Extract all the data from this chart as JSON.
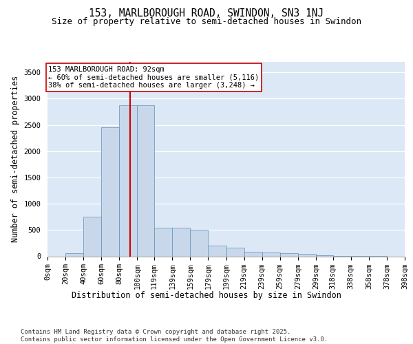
{
  "title_line1": "153, MARLBOROUGH ROAD, SWINDON, SN3 1NJ",
  "title_line2": "Size of property relative to semi-detached houses in Swindon",
  "xlabel": "Distribution of semi-detached houses by size in Swindon",
  "ylabel": "Number of semi-detached properties",
  "property_size": 92,
  "smaller_pct": "60%",
  "smaller_count": "5,116",
  "larger_pct": "38%",
  "larger_count": "3,248",
  "bin_edges": [
    0,
    20,
    40,
    60,
    80,
    100,
    119,
    139,
    159,
    179,
    199,
    219,
    239,
    259,
    279,
    299,
    318,
    338,
    358,
    378,
    398
  ],
  "bar_heights": [
    0,
    55,
    750,
    2450,
    2870,
    2870,
    550,
    540,
    500,
    200,
    160,
    80,
    75,
    55,
    45,
    15,
    5,
    2,
    1,
    0
  ],
  "bar_color": "#c8d8ea",
  "bar_edge_color": "#6090b8",
  "vline_color": "#cc0000",
  "vline_x": 92,
  "background_color": "#dce8f5",
  "annotation_box_color": "#ffffff",
  "annotation_box_edge": "#cc0000",
  "tick_labels": [
    "0sqm",
    "20sqm",
    "40sqm",
    "60sqm",
    "80sqm",
    "100sqm",
    "119sqm",
    "139sqm",
    "159sqm",
    "179sqm",
    "199sqm",
    "219sqm",
    "239sqm",
    "259sqm",
    "279sqm",
    "299sqm",
    "318sqm",
    "338sqm",
    "358sqm",
    "378sqm",
    "398sqm"
  ],
  "yticks": [
    0,
    500,
    1000,
    1500,
    2000,
    2500,
    3000,
    3500
  ],
  "ylim": [
    0,
    3700
  ],
  "footnote": "Contains HM Land Registry data © Crown copyright and database right 2025.\nContains public sector information licensed under the Open Government Licence v3.0.",
  "title_fontsize": 10.5,
  "subtitle_fontsize": 9,
  "axis_label_fontsize": 8.5,
  "tick_fontsize": 7.5,
  "annotation_fontsize": 7.5,
  "footnote_fontsize": 6.5
}
